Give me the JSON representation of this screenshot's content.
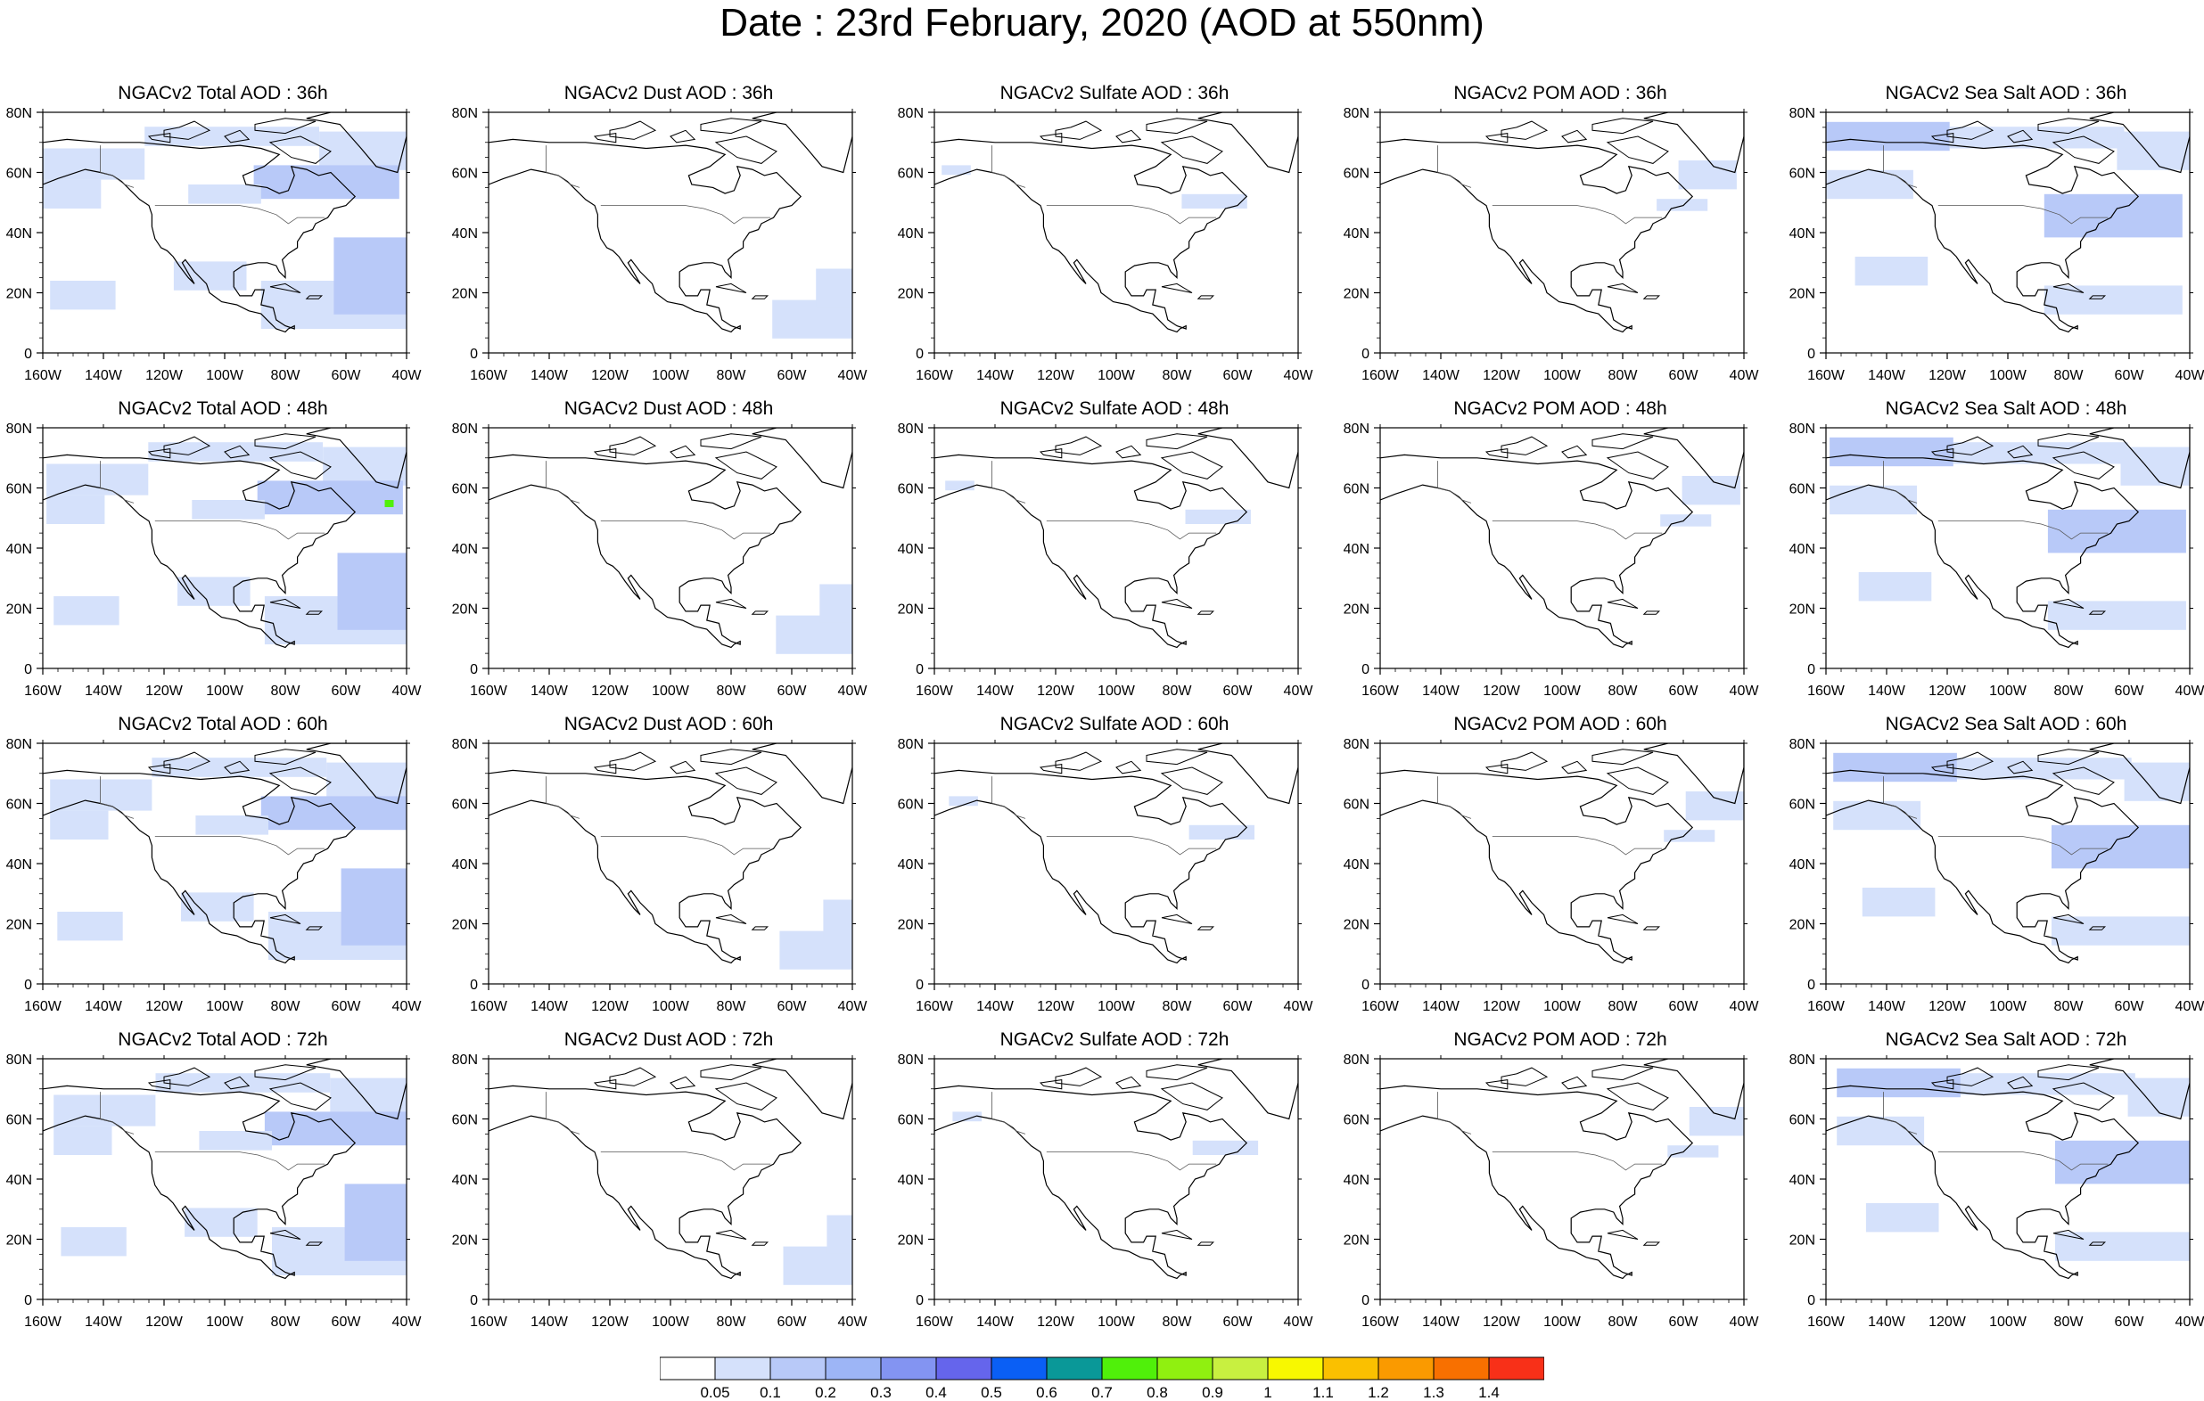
{
  "title": "Date : 23rd February, 2020 (AOD at 550nm)",
  "panels": [
    {
      "title": "NGACv2 Total AOD : 36h"
    },
    {
      "title": "NGACv2 Dust AOD : 36h"
    },
    {
      "title": "NGACv2 Sulfate AOD : 36h"
    },
    {
      "title": "NGACv2 POM AOD : 36h"
    },
    {
      "title": "NGACv2 Sea Salt AOD : 36h"
    },
    {
      "title": "NGACv2 Total AOD : 48h"
    },
    {
      "title": "NGACv2 Dust AOD : 48h"
    },
    {
      "title": "NGACv2 Sulfate AOD : 48h"
    },
    {
      "title": "NGACv2 POM AOD : 48h"
    },
    {
      "title": "NGACv2 Sea Salt AOD : 48h"
    },
    {
      "title": "NGACv2 Total AOD : 60h"
    },
    {
      "title": "NGACv2 Dust AOD : 60h"
    },
    {
      "title": "NGACv2 Sulfate AOD : 60h"
    },
    {
      "title": "NGACv2 POM AOD : 60h"
    },
    {
      "title": "NGACv2 Sea Salt AOD : 60h"
    },
    {
      "title": "NGACv2 Total AOD : 72h"
    },
    {
      "title": "NGACv2 Dust AOD : 72h"
    },
    {
      "title": "NGACv2 Sulfate AOD : 72h"
    },
    {
      "title": "NGACv2 POM AOD : 72h"
    },
    {
      "title": "NGACv2 Sea Salt  AOD : 72h"
    }
  ],
  "axes": {
    "lon_labels": [
      "160W",
      "140W",
      "120W",
      "100W",
      "80W",
      "60W",
      "40W"
    ],
    "lat_labels": [
      "0",
      "20N",
      "40N",
      "60N",
      "80N"
    ]
  },
  "colorbar": {
    "labels": [
      "0.05",
      "0.1",
      "0.2",
      "0.3",
      "0.4",
      "0.5",
      "0.6",
      "0.7",
      "0.8",
      "0.9",
      "1",
      "1.1",
      "1.2",
      "1.3",
      "1.4"
    ],
    "colors": [
      "#ffffff",
      "#d5e1fb",
      "#b8c9f8",
      "#9db5f6",
      "#8394f2",
      "#6565ec",
      "#0a5ff5",
      "#0a9898",
      "#50f00a",
      "#90f010",
      "#c8f040",
      "#f8f800",
      "#fac000",
      "#fa9a00",
      "#f87000",
      "#f83018"
    ]
  },
  "colors": {
    "land_outline": "#000000",
    "aod_light": "#d5e1fb",
    "aod_mid": "#b8c9f8",
    "aod_high": "#9db5f6"
  }
}
